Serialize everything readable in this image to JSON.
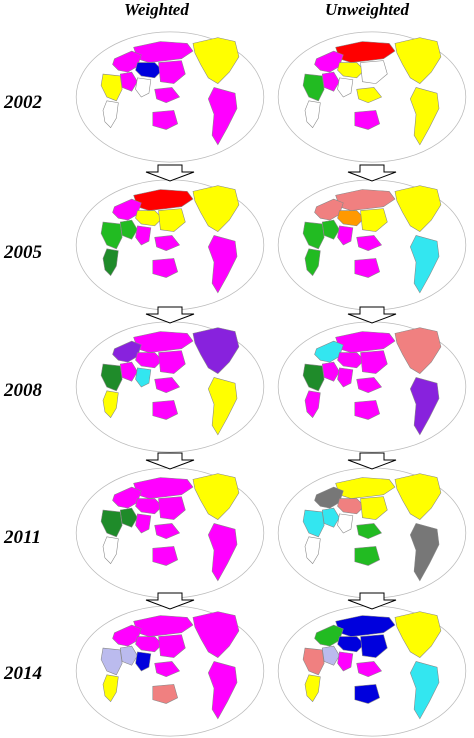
{
  "column_headers": {
    "weighted": "Weighted",
    "unweighted": "Unweighted"
  },
  "years": [
    "2002",
    "2005",
    "2008",
    "2011",
    "2014"
  ],
  "colors": {
    "magenta": "#ff00ff",
    "yellow": "#ffff00",
    "red": "#ff0000",
    "green": "#22bb22",
    "dark_green": "#1f8b2a",
    "cyan": "#33e6f0",
    "blue": "#0000dd",
    "light_blue": "#55aaff",
    "purple": "#8822dd",
    "salmon": "#f08080",
    "gray": "#777777",
    "lavender": "#bbbbee",
    "orange": "#ff9900",
    "land_outline": "#888888",
    "frame": "#bbbbbb"
  },
  "maps": [
    {
      "year": "2002",
      "variant": "weighted",
      "region_colors": {
        "north_america": "yellow",
        "south_america": "magenta",
        "europe": "magenta",
        "russia": "magenta",
        "central_asia": "blue",
        "middle_east": "magenta",
        "africa_north": "yellow",
        "africa_south": "white",
        "south_asia": "white",
        "east_asia": "magenta",
        "southeast_asia": "magenta",
        "australia": "magenta"
      }
    },
    {
      "year": "2002",
      "variant": "unweighted",
      "region_colors": {
        "north_america": "yellow",
        "south_america": "yellow",
        "europe": "magenta",
        "russia": "red",
        "central_asia": "yellow",
        "middle_east": "magenta",
        "africa_north": "green",
        "africa_south": "white",
        "south_asia": "white",
        "east_asia": "white",
        "southeast_asia": "yellow",
        "australia": "magenta"
      }
    },
    {
      "year": "2005",
      "variant": "weighted",
      "region_colors": {
        "north_america": "yellow",
        "south_america": "magenta",
        "europe": "magenta",
        "russia": "red",
        "central_asia": "yellow",
        "middle_east": "green",
        "africa_north": "green",
        "africa_south": "dark_green",
        "south_asia": "magenta",
        "east_asia": "yellow",
        "southeast_asia": "magenta",
        "australia": "magenta"
      }
    },
    {
      "year": "2005",
      "variant": "unweighted",
      "region_colors": {
        "north_america": "yellow",
        "south_america": "cyan",
        "europe": "salmon",
        "russia": "salmon",
        "central_asia": "orange",
        "middle_east": "green",
        "africa_north": "green",
        "africa_south": "green",
        "south_asia": "magenta",
        "east_asia": "yellow",
        "southeast_asia": "magenta",
        "australia": "magenta"
      }
    },
    {
      "year": "2008",
      "variant": "weighted",
      "region_colors": {
        "north_america": "purple",
        "south_america": "yellow",
        "europe": "purple",
        "russia": "magenta",
        "central_asia": "magenta",
        "middle_east": "magenta",
        "africa_north": "dark_green",
        "africa_south": "yellow",
        "south_asia": "cyan",
        "east_asia": "magenta",
        "southeast_asia": "magenta",
        "australia": "magenta"
      }
    },
    {
      "year": "2008",
      "variant": "unweighted",
      "region_colors": {
        "north_america": "salmon",
        "south_america": "purple",
        "europe": "cyan",
        "russia": "magenta",
        "central_asia": "magenta",
        "middle_east": "magenta",
        "africa_north": "dark_green",
        "africa_south": "magenta",
        "south_asia": "magenta",
        "east_asia": "magenta",
        "southeast_asia": "magenta",
        "australia": "magenta"
      }
    },
    {
      "year": "2011",
      "variant": "weighted",
      "region_colors": {
        "north_america": "yellow",
        "south_america": "magenta",
        "europe": "magenta",
        "russia": "magenta",
        "central_asia": "magenta",
        "middle_east": "dark_green",
        "africa_north": "dark_green",
        "africa_south": "white",
        "south_asia": "magenta",
        "east_asia": "magenta",
        "southeast_asia": "magenta",
        "australia": "magenta"
      }
    },
    {
      "year": "2011",
      "variant": "unweighted",
      "region_colors": {
        "north_america": "yellow",
        "south_america": "gray",
        "europe": "gray",
        "russia": "yellow",
        "central_asia": "salmon",
        "middle_east": "cyan",
        "africa_north": "cyan",
        "africa_south": "white",
        "south_asia": "white",
        "east_asia": "yellow",
        "southeast_asia": "green",
        "australia": "green"
      }
    },
    {
      "year": "2014",
      "variant": "weighted",
      "region_colors": {
        "north_america": "magenta",
        "south_america": "magenta",
        "europe": "magenta",
        "russia": "magenta",
        "central_asia": "magenta",
        "middle_east": "lavender",
        "africa_north": "lavender",
        "africa_south": "yellow",
        "south_asia": "blue",
        "east_asia": "magenta",
        "southeast_asia": "magenta",
        "australia": "salmon"
      }
    },
    {
      "year": "2014",
      "variant": "unweighted",
      "region_colors": {
        "north_america": "yellow",
        "south_america": "cyan",
        "europe": "green",
        "russia": "blue",
        "central_asia": "blue",
        "middle_east": "lavender",
        "africa_north": "salmon",
        "africa_south": "yellow",
        "south_asia": "magenta",
        "east_asia": "blue",
        "southeast_asia": "magenta",
        "australia": "blue"
      }
    }
  ]
}
